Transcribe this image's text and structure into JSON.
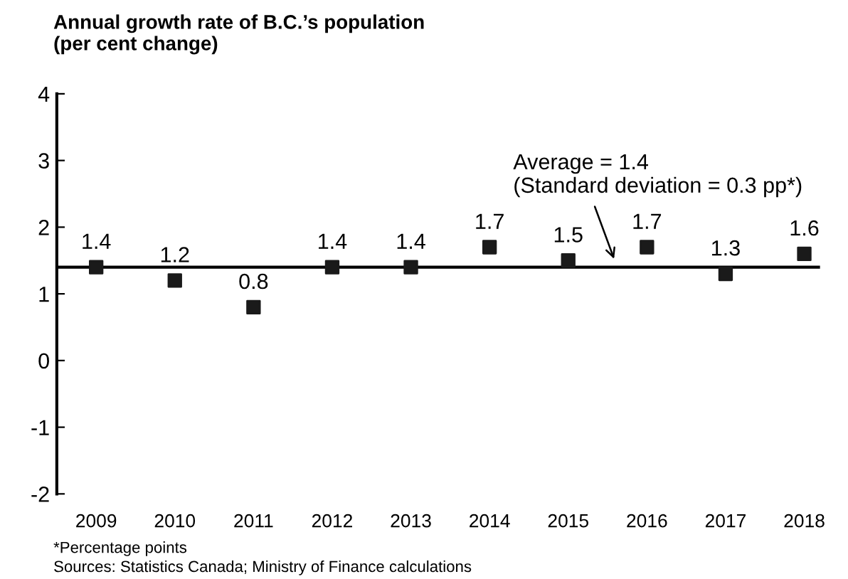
{
  "chart_data": {
    "type": "scatter",
    "title": "Annual growth rate of B.C.’s population\n(per cent change)",
    "categories": [
      "2009",
      "2010",
      "2011",
      "2012",
      "2013",
      "2014",
      "2015",
      "2016",
      "2017",
      "2018"
    ],
    "values": [
      1.4,
      1.2,
      0.8,
      1.4,
      1.4,
      1.7,
      1.5,
      1.7,
      1.3,
      1.6
    ],
    "color": "#1a1a1a",
    "marker": "square",
    "data_labels": true,
    "ylim": [
      -2,
      4
    ],
    "yticks": [
      -2,
      -1,
      0,
      1,
      2,
      3,
      4
    ],
    "grid": false,
    "legend": false,
    "ref_lines": [
      {
        "axis": "y",
        "value": 1.4,
        "label": "Average = 1.4\n(Standard deviation = 0.3 pp*)",
        "color": "#000000",
        "line_style": "solid"
      }
    ],
    "annotations": [
      "*Percentage points",
      "Sources: Statistics Canada; Ministry of Finance calculations"
    ]
  }
}
